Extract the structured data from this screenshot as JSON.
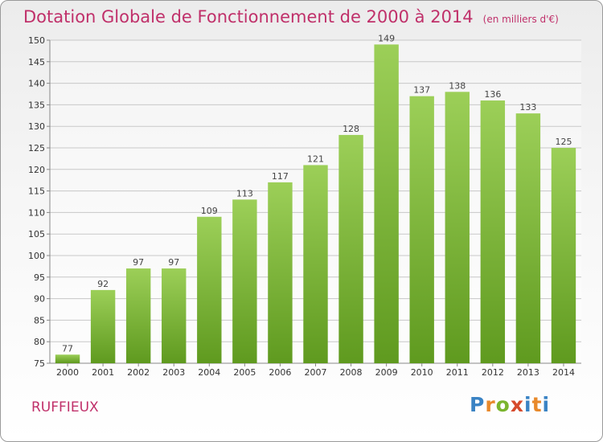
{
  "title": "Dotation Globale de Fonctionnement de 2000 à 2014",
  "unit": "(en milliers d'€)",
  "commune": "RUFFIEUX",
  "brand": "Proxiti",
  "colors": {
    "bar_top": "#9ccf58",
    "bar_bottom": "#5f9a1f",
    "title": "#c0306a",
    "grid": "#c8c8c8"
  },
  "chart_data": {
    "type": "bar",
    "title": "Dotation Globale de Fonctionnement de 2000 à 2014",
    "subtitle": "(en milliers d'€)",
    "categories": [
      "2000",
      "2001",
      "2002",
      "2003",
      "2004",
      "2005",
      "2006",
      "2007",
      "2008",
      "2009",
      "2010",
      "2011",
      "2012",
      "2013",
      "2014"
    ],
    "values": [
      77,
      92,
      97,
      97,
      109,
      113,
      117,
      121,
      128,
      149,
      137,
      138,
      136,
      133,
      125
    ],
    "ylim": [
      75,
      150
    ],
    "yticks": [
      75,
      80,
      85,
      90,
      95,
      100,
      105,
      110,
      115,
      120,
      125,
      130,
      135,
      140,
      145,
      150
    ],
    "grid": true,
    "data_labels": true
  }
}
